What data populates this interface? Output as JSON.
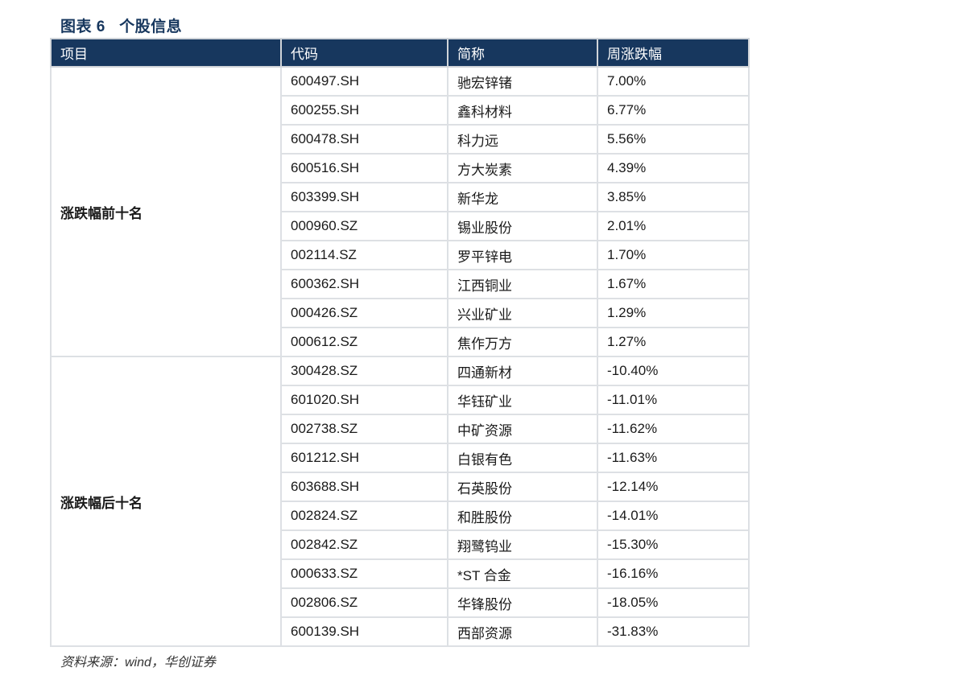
{
  "caption": "图表 6   个股信息",
  "headers": {
    "item": "项目",
    "code": "代码",
    "name": "简称",
    "change": "周涨跌幅"
  },
  "groups": [
    {
      "label": "涨跌幅前十名",
      "rows": [
        {
          "code": "600497.SH",
          "name": "驰宏锌锗",
          "change": "7.00%"
        },
        {
          "code": "600255.SH",
          "name": "鑫科材料",
          "change": "6.77%"
        },
        {
          "code": "600478.SH",
          "name": "科力远",
          "change": "5.56%"
        },
        {
          "code": "600516.SH",
          "name": "方大炭素",
          "change": "4.39%"
        },
        {
          "code": "603399.SH",
          "name": "新华龙",
          "change": "3.85%"
        },
        {
          "code": "000960.SZ",
          "name": "锡业股份",
          "change": "2.01%"
        },
        {
          "code": "002114.SZ",
          "name": "罗平锌电",
          "change": "1.70%"
        },
        {
          "code": "600362.SH",
          "name": "江西铜业",
          "change": "1.67%"
        },
        {
          "code": "000426.SZ",
          "name": "兴业矿业",
          "change": "1.29%"
        },
        {
          "code": "000612.SZ",
          "name": "焦作万方",
          "change": "1.27%"
        }
      ]
    },
    {
      "label": "涨跌幅后十名",
      "rows": [
        {
          "code": "300428.SZ",
          "name": "四通新材",
          "change": "-10.40%"
        },
        {
          "code": "601020.SH",
          "name": "华钰矿业",
          "change": "-11.01%"
        },
        {
          "code": "002738.SZ",
          "name": "中矿资源",
          "change": "-11.62%"
        },
        {
          "code": "601212.SH",
          "name": "白银有色",
          "change": "-11.63%"
        },
        {
          "code": "603688.SH",
          "name": "石英股份",
          "change": "-12.14%"
        },
        {
          "code": "002824.SZ",
          "name": "和胜股份",
          "change": "-14.01%"
        },
        {
          "code": "002842.SZ",
          "name": "翔鹭钨业",
          "change": "-15.30%"
        },
        {
          "code": "000633.SZ",
          "name": "*ST 合金",
          "change": "-16.16%"
        },
        {
          "code": "002806.SZ",
          "name": "华锋股份",
          "change": "-18.05%"
        },
        {
          "code": "600139.SH",
          "name": "西部资源",
          "change": "-31.83%"
        }
      ]
    }
  ],
  "source": "资料来源：wind，华创证券",
  "colors": {
    "header_bg": "#17375e",
    "header_text": "#ffffff",
    "border": "#dde0e4"
  }
}
